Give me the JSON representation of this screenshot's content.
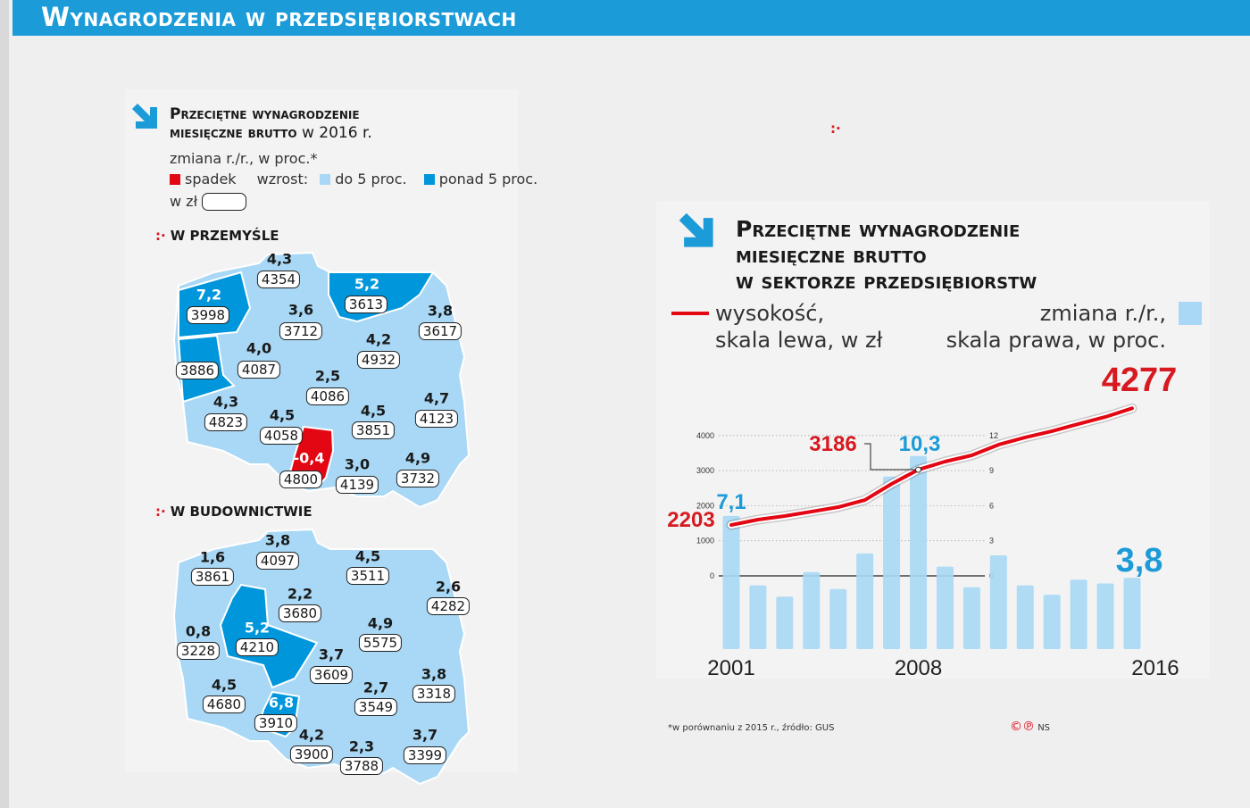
{
  "header": {
    "title": "Wynagrodzenia w przedsiębiorstwach"
  },
  "left": {
    "title_bold_1": "Przeciętne wynagrodzenie",
    "title_bold_2": "miesięczne brutto",
    "title_normal": " w 2016 r.",
    "subtitle": "zmiana r./r., w proc.*",
    "legend": {
      "decline": "spadek",
      "growth": "wzrost:",
      "up_to_5": "do 5 proc.",
      "over_5": "ponad 5 proc.",
      "in_pln": "w zł"
    },
    "colors": {
      "decline": "#e30613",
      "up_to_5": "#a8d8f5",
      "over_5": "#0096dc"
    },
    "industry": {
      "heading": "W PRZEMYŚLE",
      "regions": [
        {
          "change": "4,3",
          "salary": "4354"
        },
        {
          "change": "7,2",
          "salary": "3998"
        },
        {
          "change": "",
          "salary": "3886"
        },
        {
          "change": "3,6",
          "salary": "3712"
        },
        {
          "change": "5,2",
          "salary": "3613"
        },
        {
          "change": "3,8",
          "salary": "3617"
        },
        {
          "change": "4,0",
          "salary": "4087"
        },
        {
          "change": "4,2",
          "salary": "4932"
        },
        {
          "change": "2,5",
          "salary": "4086"
        },
        {
          "change": "4,3",
          "salary": "4823"
        },
        {
          "change": "4,5",
          "salary": "4058"
        },
        {
          "change": "4,5",
          "salary": "3851"
        },
        {
          "change": "4,7",
          "salary": "4123"
        },
        {
          "change": "-0,4",
          "salary": "4800"
        },
        {
          "change": "3,0",
          "salary": "4139"
        },
        {
          "change": "4,9",
          "salary": "3732"
        }
      ]
    },
    "construction": {
      "heading": "W BUDOWNICTWIE",
      "regions": [
        {
          "change": "1,6",
          "salary": "3861"
        },
        {
          "change": "3,8",
          "salary": "4097"
        },
        {
          "change": "4,5",
          "salary": "3511"
        },
        {
          "change": "2,2",
          "salary": "3680"
        },
        {
          "change": "2,6",
          "salary": "4282"
        },
        {
          "change": "0,8",
          "salary": "3228"
        },
        {
          "change": "5,2",
          "salary": "4210"
        },
        {
          "change": "4,9",
          "salary": "5575"
        },
        {
          "change": "3,7",
          "salary": "3609"
        },
        {
          "change": "4,5",
          "salary": "4680"
        },
        {
          "change": "6,8",
          "salary": "3910"
        },
        {
          "change": "2,7",
          "salary": "3549"
        },
        {
          "change": "3,8",
          "salary": "3318"
        },
        {
          "change": "4,2",
          "salary": "3900"
        },
        {
          "change": "2,3",
          "salary": "3788"
        },
        {
          "change": "3,7",
          "salary": "3399"
        }
      ]
    }
  },
  "right": {
    "title_1": "Przeciętne wynagrodzenie",
    "title_2": "miesięczne brutto",
    "title_3": "w sektorze przedsiębiorstw",
    "legend_line_1": "wysokość,",
    "legend_line_2": "skala lewa, w zł",
    "legend_bar_1": "zmiana r./r.,",
    "legend_bar_2": "skala prawa, w proc."
  },
  "chart_data": {
    "type": "bar+line",
    "x": [
      2001,
      2002,
      2003,
      2004,
      2005,
      2006,
      2007,
      2008,
      2009,
      2010,
      2011,
      2012,
      2013,
      2014,
      2015,
      2016
    ],
    "x_tick_labels": [
      "2001",
      "2008",
      "2016"
    ],
    "series": [
      {
        "name": "wysokość, skala lewa, w zł",
        "type": "line",
        "color": "#e30613",
        "values": [
          2203,
          2298,
          2362,
          2440,
          2520,
          2647,
          2933,
          3186,
          3330,
          3441,
          3630,
          3760,
          3870,
          4000,
          4124,
          4277
        ]
      },
      {
        "name": "zmiana r./r., skala prawa, w proc.",
        "type": "bar",
        "color": "#a8d8f5",
        "values": [
          7.1,
          3.4,
          2.8,
          4.1,
          3.2,
          5.1,
          9.2,
          10.3,
          4.4,
          3.3,
          5.0,
          3.4,
          2.9,
          3.7,
          3.5,
          3.8
        ]
      }
    ],
    "left_axis": {
      "ticks": [
        "0",
        "1000",
        "2000",
        "3000",
        "4000"
      ]
    },
    "right_axis": {
      "ticks": [
        "0",
        "3",
        "6",
        "9",
        "12"
      ]
    },
    "annotations": {
      "line_start": "2203",
      "line_2008": "3186",
      "line_end": "4277",
      "bar_start": "7,1",
      "bar_2008": "10,3",
      "bar_end": "3,8"
    },
    "grid": true
  },
  "footer": {
    "note": "*w porównaniu z 2015 r., źródło: GUS",
    "credit": "NS",
    "credit_icons": "©℗"
  }
}
